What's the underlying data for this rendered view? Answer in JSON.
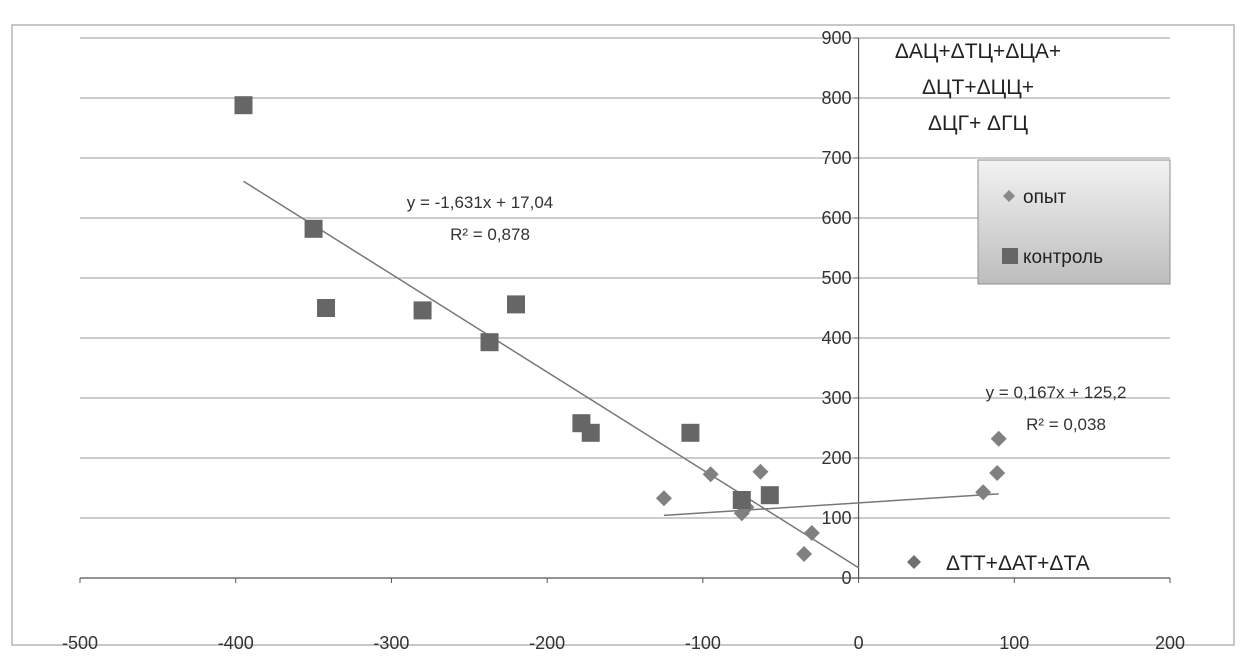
{
  "chart_data": {
    "type": "scatter",
    "xlim": [
      -500,
      200
    ],
    "ylim": [
      0,
      900
    ],
    "x_ticks": [
      -500,
      -400,
      -300,
      -200,
      -100,
      0,
      100,
      200
    ],
    "y_ticks": [
      0,
      100,
      200,
      300,
      400,
      500,
      600,
      700,
      800,
      900
    ],
    "grid": "horizontal",
    "legend_position": "right",
    "series": [
      {
        "name": "опыт",
        "marker": "diamond",
        "color": "#808080",
        "points": [
          [
            -125,
            133
          ],
          [
            -95,
            173
          ],
          [
            -75,
            108
          ],
          [
            -72,
            118
          ],
          [
            -63,
            177
          ],
          [
            -35,
            40
          ],
          [
            -30,
            75
          ],
          [
            80,
            143
          ],
          [
            89,
            175
          ],
          [
            90,
            232
          ]
        ]
      },
      {
        "name": "контроль",
        "marker": "square",
        "color": "#666666",
        "points": [
          [
            -395,
            788
          ],
          [
            -350,
            582
          ],
          [
            -342,
            450
          ],
          [
            -280,
            446
          ],
          [
            -237,
            393
          ],
          [
            -220,
            456
          ],
          [
            -178,
            258
          ],
          [
            -172,
            242
          ],
          [
            -108,
            242
          ],
          [
            -75,
            130
          ],
          [
            -57,
            138
          ]
        ]
      }
    ],
    "trendlines": [
      {
        "series": "контроль",
        "slope": -1.631,
        "intercept": 17.04,
        "x_range": [
          -395,
          0
        ],
        "equation": "y = -1,631x + 17,04",
        "r2": "R² = 0,878"
      },
      {
        "series": "опыт",
        "slope": 0.167,
        "intercept": 125.2,
        "x_range": [
          -125,
          90
        ],
        "equation": "y = 0,167x + 125,2",
        "r2": "R² = 0,038"
      }
    ],
    "y_axis_title": [
      "ΔАЦ+ΔТЦ+ΔЦА+",
      "ΔЦТ+ΔЦЦ+",
      "ΔЦГ+ ΔГЦ"
    ],
    "x_axis_title": "ΔТТ+ΔАТ+ΔТА",
    "legend": [
      {
        "label": "опыт",
        "marker": "diamond"
      },
      {
        "label": "контроль",
        "marker": "square"
      }
    ],
    "colors": {
      "line": "#777777",
      "grid": "#9a9a9a",
      "legend_top": "#f2f2f2",
      "legend_bottom": "#bdbdbd"
    }
  }
}
